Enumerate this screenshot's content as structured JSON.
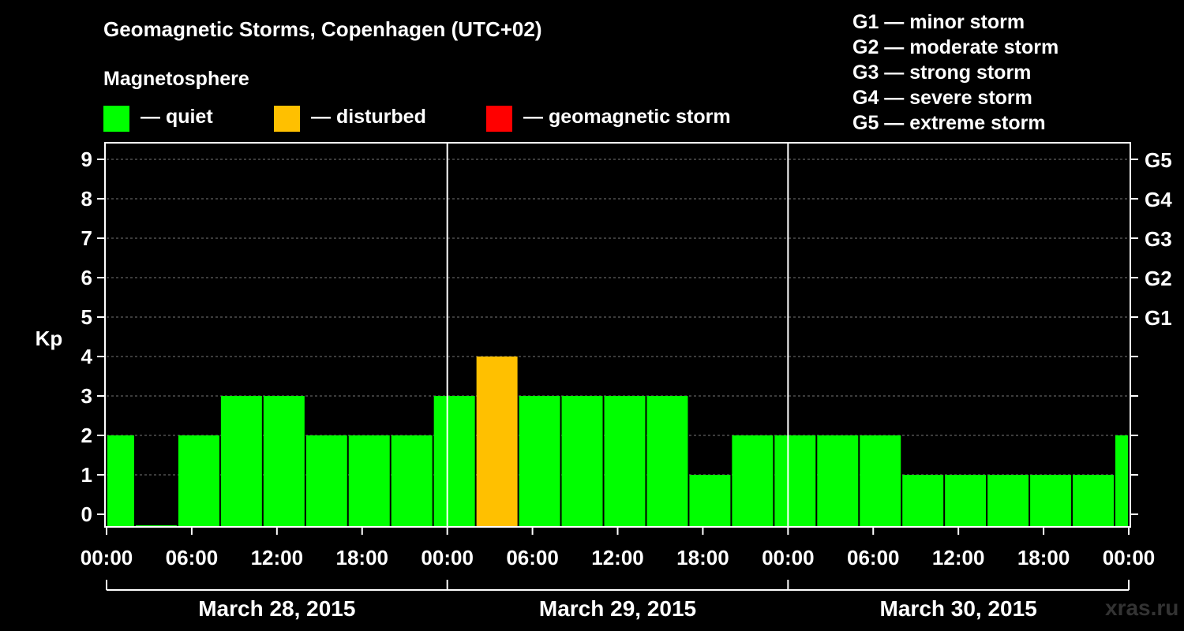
{
  "title": "Geomagnetic Storms, Copenhagen (UTC+02)",
  "magnetosphere_label": "Magnetosphere",
  "legend": [
    {
      "label": "— quiet",
      "color": "#00ff00"
    },
    {
      "label": "— disturbed",
      "color": "#ffc000"
    },
    {
      "label": "— geomagnetic storm",
      "color": "#ff0000"
    }
  ],
  "g_scale": [
    "G1 — minor storm",
    "G2 — moderate storm",
    "G3 — strong storm",
    "G4 — severe storm",
    "G5 — extreme storm"
  ],
  "watermark": "xras.ru",
  "colors": {
    "quiet": "#00ff00",
    "disturbed": "#ffc000",
    "storm": "#ff0000",
    "background": "#000000",
    "axis": "#ffffff"
  },
  "chart_data": {
    "type": "bar",
    "title": "Geomagnetic Storms, Copenhagen (UTC+02)",
    "ylabel": "Kp",
    "ylim": [
      0,
      9
    ],
    "yticks": [
      "0",
      "1",
      "2",
      "3",
      "4",
      "5",
      "6",
      "7",
      "8",
      "9"
    ],
    "right_ticks": [
      {
        "kp": 5,
        "label": "G1"
      },
      {
        "kp": 6,
        "label": "G2"
      },
      {
        "kp": 7,
        "label": "G3"
      },
      {
        "kp": 8,
        "label": "G4"
      },
      {
        "kp": 9,
        "label": "G5"
      }
    ],
    "hours_span": 72,
    "interval_hours": 3,
    "x_tick_labels": [
      "00:00",
      "06:00",
      "12:00",
      "18:00",
      "00:00",
      "06:00",
      "12:00",
      "18:00",
      "00:00",
      "06:00",
      "12:00",
      "18:00",
      "00:00"
    ],
    "days": [
      "March 28, 2015",
      "March 29, 2015",
      "March 30, 2015"
    ],
    "bars": [
      {
        "start_hour": 0,
        "end_hour": 2,
        "kp": 2,
        "level": "quiet"
      },
      {
        "start_hour": 2,
        "end_hour": 5,
        "kp": 0,
        "level": "quiet"
      },
      {
        "start_hour": 5,
        "end_hour": 8,
        "kp": 2,
        "level": "quiet"
      },
      {
        "start_hour": 8,
        "end_hour": 11,
        "kp": 3,
        "level": "quiet"
      },
      {
        "start_hour": 11,
        "end_hour": 14,
        "kp": 3,
        "level": "quiet"
      },
      {
        "start_hour": 14,
        "end_hour": 17,
        "kp": 2,
        "level": "quiet"
      },
      {
        "start_hour": 17,
        "end_hour": 20,
        "kp": 2,
        "level": "quiet"
      },
      {
        "start_hour": 20,
        "end_hour": 23,
        "kp": 2,
        "level": "quiet"
      },
      {
        "start_hour": 23,
        "end_hour": 26,
        "kp": 3,
        "level": "quiet"
      },
      {
        "start_hour": 26,
        "end_hour": 29,
        "kp": 4,
        "level": "disturbed"
      },
      {
        "start_hour": 29,
        "end_hour": 32,
        "kp": 3,
        "level": "quiet"
      },
      {
        "start_hour": 32,
        "end_hour": 35,
        "kp": 3,
        "level": "quiet"
      },
      {
        "start_hour": 35,
        "end_hour": 38,
        "kp": 3,
        "level": "quiet"
      },
      {
        "start_hour": 38,
        "end_hour": 41,
        "kp": 3,
        "level": "quiet"
      },
      {
        "start_hour": 41,
        "end_hour": 44,
        "kp": 1,
        "level": "quiet"
      },
      {
        "start_hour": 44,
        "end_hour": 47,
        "kp": 2,
        "level": "quiet"
      },
      {
        "start_hour": 47,
        "end_hour": 50,
        "kp": 2,
        "level": "quiet"
      },
      {
        "start_hour": 50,
        "end_hour": 53,
        "kp": 2,
        "level": "quiet"
      },
      {
        "start_hour": 53,
        "end_hour": 56,
        "kp": 2,
        "level": "quiet"
      },
      {
        "start_hour": 56,
        "end_hour": 59,
        "kp": 1,
        "level": "quiet"
      },
      {
        "start_hour": 59,
        "end_hour": 62,
        "kp": 1,
        "level": "quiet"
      },
      {
        "start_hour": 62,
        "end_hour": 65,
        "kp": 1,
        "level": "quiet"
      },
      {
        "start_hour": 65,
        "end_hour": 68,
        "kp": 1,
        "level": "quiet"
      },
      {
        "start_hour": 68,
        "end_hour": 71,
        "kp": 1,
        "level": "quiet"
      },
      {
        "start_hour": 71,
        "end_hour": 72,
        "kp": 2,
        "level": "quiet"
      }
    ]
  }
}
